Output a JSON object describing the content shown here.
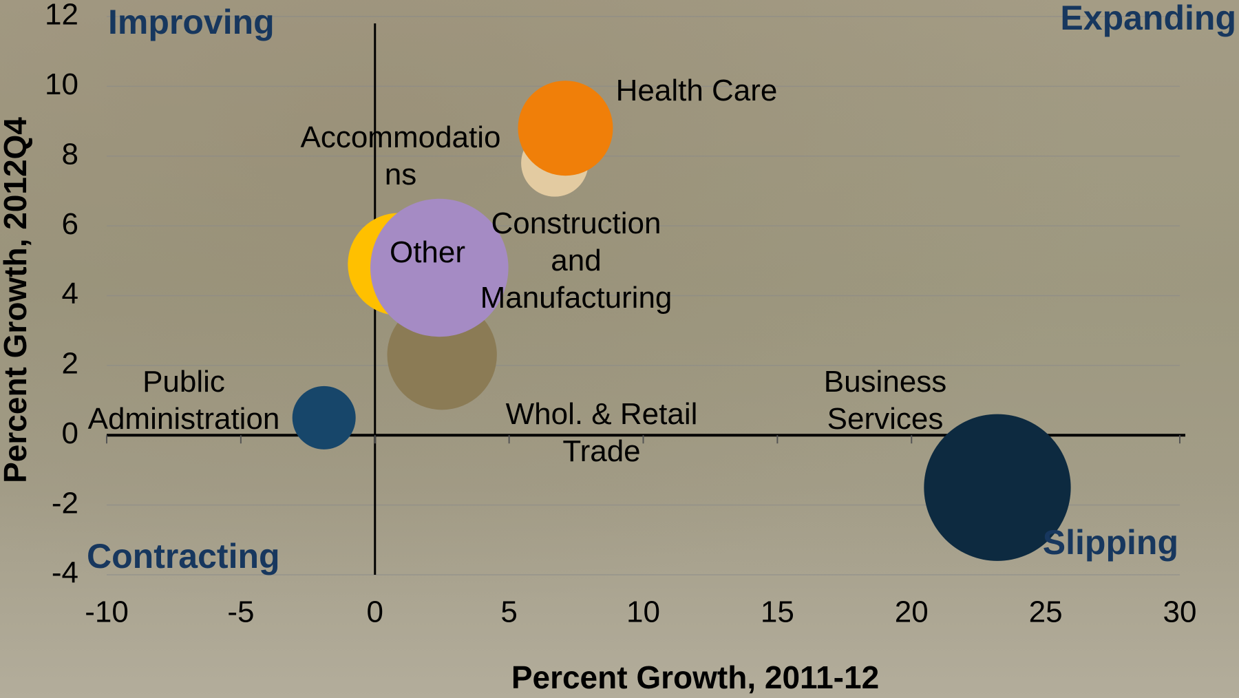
{
  "chart_data": {
    "type": "bubble",
    "x_label": "Percent Growth, 2011-12",
    "y_label": "Percent Growth, 2012Q4",
    "annotations": [
      "Improving",
      "Expanding",
      "Contracting",
      "Slipping"
    ],
    "xlim": [
      -10,
      30
    ],
    "xticks": [
      -10,
      -5,
      0,
      5,
      10,
      15,
      20,
      25,
      30
    ],
    "ylim": [
      -4,
      12
    ],
    "yticks": [
      -4,
      -2,
      0,
      2,
      4,
      6,
      8,
      10,
      12
    ],
    "grid": true,
    "series": [
      {
        "name": "Accommodations",
        "color": "#e3cba1",
        "x": [
          6.7
        ],
        "values": [
          7.8
        ],
        "sizes": [
          18
        ]
      },
      {
        "name": "Health Care",
        "color": "#f07f09",
        "x": [
          7.1
        ],
        "values": [
          8.8
        ],
        "sizes": [
          36
        ]
      },
      {
        "name": "Construction and Manufacturing",
        "color": "#ffc000",
        "x": [
          0.9
        ],
        "values": [
          4.9
        ],
        "sizes": [
          42
        ]
      },
      {
        "name": "Whol. & Retail Trade",
        "color": "#8b7b55",
        "x": [
          2.5
        ],
        "values": [
          2.3
        ],
        "sizes": [
          48
        ]
      },
      {
        "name": "Other",
        "color": "#a58bc4",
        "x": [
          2.4
        ],
        "values": [
          4.8
        ],
        "sizes": [
          76
        ]
      },
      {
        "name": "Public Administration",
        "color": "#17466a",
        "x": [
          -1.9
        ],
        "values": [
          0.5
        ],
        "sizes": [
          16
        ]
      },
      {
        "name": "Business Services",
        "color": "#0d2a40",
        "x": [
          23.2
        ],
        "values": [
          -1.5
        ],
        "sizes": [
          86
        ]
      }
    ]
  }
}
